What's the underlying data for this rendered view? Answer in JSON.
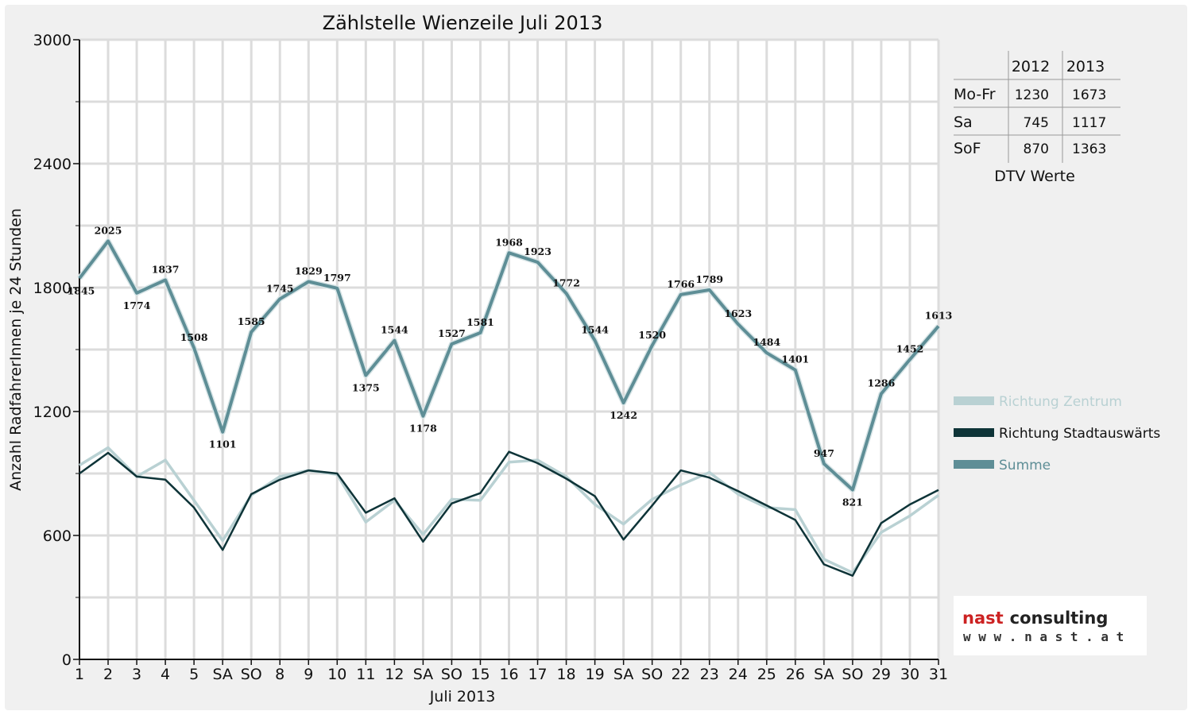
{
  "chart_data": {
    "type": "line",
    "title": "Zählstelle Wienzeile Juli 2013",
    "xlabel": "Juli 2013",
    "ylabel": "Anzahl RadfahrerInnen je 24 Stunden",
    "ylim": [
      0,
      3000
    ],
    "yticks": [
      "0",
      "600",
      "1200",
      "1800",
      "2400",
      "3000"
    ],
    "categories": [
      "1",
      "2",
      "3",
      "4",
      "5",
      "SA",
      "SO",
      "8",
      "9",
      "10",
      "11",
      "12",
      "SA",
      "SO",
      "15",
      "16",
      "17",
      "18",
      "19",
      "SA",
      "SO",
      "22",
      "23",
      "24",
      "25",
      "26",
      "SA",
      "SO",
      "29",
      "30",
      "31"
    ],
    "highlight_categories": [
      "SO"
    ],
    "highlight_color": "#e00000",
    "grid": true,
    "series": [
      {
        "name": "Richtung Zentrum",
        "color": "#b9d1d3",
        "values": [
          940,
          1025,
          885,
          965,
          770,
          575,
          795,
          885,
          915,
          895,
          665,
          770,
          605,
          775,
          770,
          955,
          965,
          885,
          750,
          655,
          775,
          845,
          905,
          800,
          735,
          725,
          485,
          420,
          615,
          695,
          795
        ]
      },
      {
        "name": "Richtung Stadtauswärts",
        "color": "#0e3438",
        "values": [
          900,
          1000,
          885,
          870,
          735,
          530,
          800,
          870,
          915,
          900,
          710,
          780,
          570,
          755,
          805,
          1005,
          950,
          875,
          790,
          580,
          745,
          915,
          880,
          815,
          745,
          675,
          460,
          405,
          660,
          750,
          820
        ]
      },
      {
        "name": "Summe",
        "color": "#5e8e96",
        "values": [
          1845,
          2025,
          1774,
          1837,
          1508,
          1101,
          1585,
          1745,
          1829,
          1797,
          1375,
          1544,
          1178,
          1527,
          1581,
          1968,
          1923,
          1772,
          1544,
          1242,
          1520,
          1766,
          1789,
          1623,
          1484,
          1401,
          947,
          821,
          1286,
          1452,
          1613
        ]
      }
    ],
    "data_labels": [
      "1845",
      "2025",
      "1774",
      "1837",
      "1508",
      "1101",
      "1585",
      "1745",
      "1829",
      "1797",
      "1375",
      "1544",
      "1178",
      "1527",
      "1581",
      "1968",
      "1923",
      "1772",
      "1544",
      "1242",
      "1520",
      "1766",
      "1789",
      "1623",
      "1484",
      "1401",
      "947",
      "821",
      "1286",
      "1452",
      "1613"
    ],
    "legend_position": "right"
  },
  "dtv_table": {
    "headers": [
      "2012",
      "2013"
    ],
    "rows": [
      {
        "label": "Mo-Fr",
        "v2012": "1230",
        "v2013": "1673"
      },
      {
        "label": "Sa",
        "v2012": "745",
        "v2013": "1117"
      },
      {
        "label": "SoF",
        "v2012": "870",
        "v2013": "1363"
      }
    ],
    "caption": "DTV Werte"
  },
  "logo": {
    "name_part1": "nast",
    "name_part2": "consulting",
    "url": "w w w . n a s t . a t",
    "color1": "#cc2222",
    "color2": "#222222"
  }
}
